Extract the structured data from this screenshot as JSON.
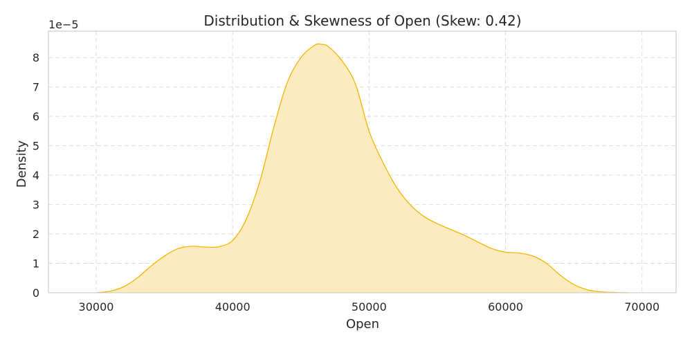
{
  "chart_data": {
    "type": "area",
    "title": "Distribution & Skewness of Open (Skew: 0.42)",
    "xlabel": "Open",
    "ylabel": "Density",
    "y_offset_label": "1e−5",
    "xlim": [
      26500,
      72500
    ],
    "ylim": [
      0,
      8.9
    ],
    "x_ticks": [
      30000,
      40000,
      50000,
      60000,
      70000
    ],
    "y_ticks": [
      0,
      1,
      2,
      3,
      4,
      5,
      6,
      7,
      8
    ],
    "grid": true,
    "legend": "none",
    "colors": {
      "line": "#f4b400",
      "fill": "#fdebc0"
    },
    "series": [
      {
        "x": [
          30000,
          31000,
          32000,
          33000,
          34000,
          35000,
          36000,
          37000,
          38000,
          39000,
          40000,
          41000,
          42000,
          43000,
          44000,
          45000,
          46000,
          46500,
          47000,
          48000,
          49000,
          50000,
          51000,
          52000,
          53000,
          54000,
          55000,
          56000,
          57000,
          58000,
          59000,
          60000,
          61000,
          62000,
          63000,
          64000,
          65000,
          66000,
          67000,
          68000,
          69000
        ],
        "values": [
          0.0,
          0.05,
          0.2,
          0.5,
          0.9,
          1.25,
          1.5,
          1.58,
          1.55,
          1.57,
          1.78,
          2.5,
          3.8,
          5.6,
          7.15,
          8.0,
          8.42,
          8.45,
          8.38,
          7.9,
          7.1,
          5.5,
          4.45,
          3.6,
          3.0,
          2.6,
          2.35,
          2.15,
          1.95,
          1.72,
          1.5,
          1.38,
          1.35,
          1.25,
          1.0,
          0.6,
          0.28,
          0.1,
          0.03,
          0.01,
          0.0
        ]
      }
    ]
  }
}
